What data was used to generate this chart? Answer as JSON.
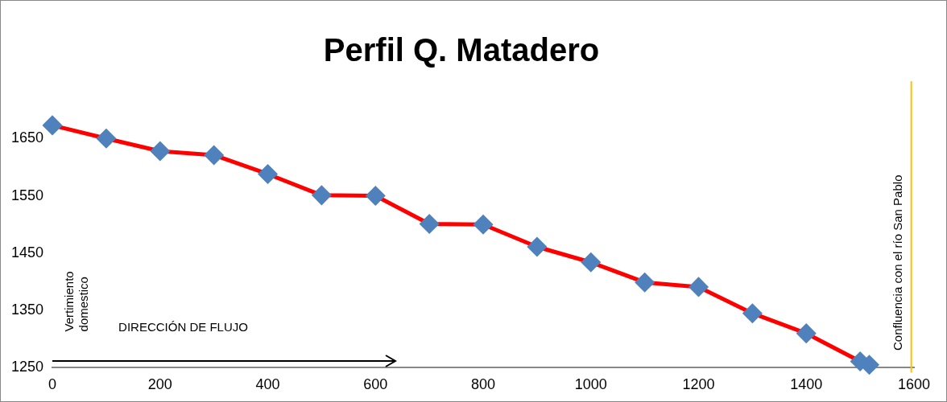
{
  "chart_data": {
    "type": "line",
    "title": "Perfil Q. Matadero",
    "x": [
      0,
      100,
      200,
      300,
      400,
      500,
      600,
      700,
      800,
      900,
      1000,
      1100,
      1200,
      1300,
      1400,
      1500,
      1517
    ],
    "series": [
      {
        "color": "#ff0000",
        "colors": [
          "#4f81bd",
          "#4f81bd",
          "#4f81bd",
          "#4f81bd",
          "#4f81bd",
          "#4f81bd",
          "#4f81bd",
          "#4f81bd",
          "#4f81bd",
          "#4f81bd",
          "#4f81bd",
          "#4f81bd",
          "#4f81bd",
          "#4f81bd",
          "#4f81bd",
          "#4f81bd",
          "#4f81bd"
        ],
        "values": [
          1673,
          1650,
          1628,
          1621,
          1588,
          1551,
          1550,
          1501,
          1500,
          1461,
          1434,
          1399,
          1391,
          1345,
          1310,
          1261,
          1255
        ]
      }
    ],
    "xlim": [
      0,
      1600
    ],
    "xticks": [
      0,
      200,
      400,
      600,
      800,
      1000,
      1200,
      1400,
      1600
    ],
    "ylim": [
      1250,
      1750
    ],
    "yticks": [
      1250,
      1350,
      1450,
      1550,
      1650
    ],
    "grid": false,
    "legend": false,
    "marker": "diamond",
    "line_style": "solid",
    "ref_lines": [
      {
        "axis": "x",
        "value": 1595,
        "label": "Confluencia con el río San Pablo",
        "color": "#ffc000"
      }
    ],
    "annotations": [
      "Vertimiento domestico",
      "DIRECCIÓN DE FLUJO"
    ]
  }
}
